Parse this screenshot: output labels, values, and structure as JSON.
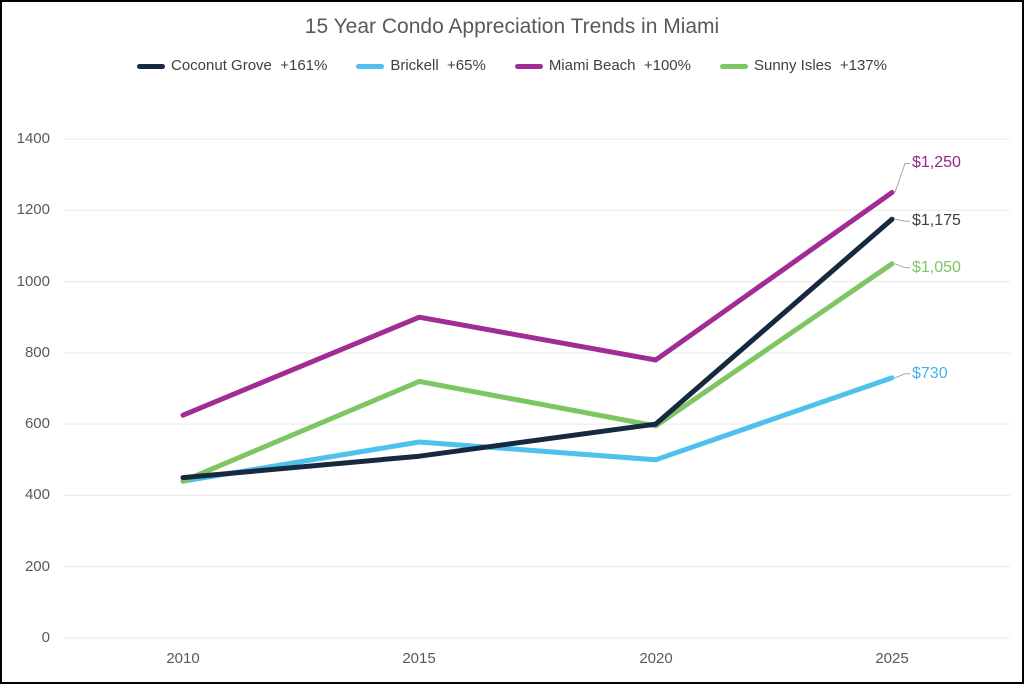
{
  "chart_data": {
    "type": "line",
    "title": "15 Year Condo Appreciation Trends in Miami",
    "categories": [
      "2010",
      "2015",
      "2020",
      "2025"
    ],
    "series": [
      {
        "name": "Coconut Grove",
        "appreciation": "+161%",
        "legend_label": "Coconut Grove  +161%",
        "color": "#16293E",
        "label_color": "#404040",
        "values": [
          450,
          510,
          600,
          1175
        ],
        "end_label": "$1,175"
      },
      {
        "name": "Brickell",
        "appreciation": "+65%",
        "legend_label": "Brickell  +65%",
        "color": "#4EC1EC",
        "label_color": "#41B5E6",
        "values": [
          440,
          550,
          500,
          730
        ],
        "end_label": "$730"
      },
      {
        "name": "Miami Beach",
        "appreciation": "+100%",
        "legend_label": "Miami Beach  +100%",
        "color": "#A02C94",
        "label_color": "#92268A",
        "values": [
          625,
          900,
          780,
          1250
        ],
        "end_label": "$1,250"
      },
      {
        "name": "Sunny Isles",
        "appreciation": "+137%",
        "legend_label": "Sunny Isles  +137%",
        "color": "#7DC663",
        "label_color": "#7DC663",
        "values": [
          440,
          720,
          595,
          1050
        ],
        "end_label": "$1,050"
      }
    ],
    "ylim": [
      0,
      1400
    ],
    "y_ticks": [
      0,
      200,
      400,
      600,
      800,
      1000,
      1200,
      1400
    ],
    "xlabel": "",
    "ylabel": "",
    "grid": true,
    "legend_position": "top",
    "draw_order": [
      "Brickell",
      "Sunny Isles",
      "Miami Beach",
      "Coconut Grove"
    ]
  },
  "colors": {
    "grid": "#e9e9e9",
    "axis_text": "#595959",
    "title_text": "#595959",
    "legend_text": "#404040",
    "leader_line": "#a6a6a6",
    "background": "#ffffff",
    "frame_border": "#000000"
  }
}
